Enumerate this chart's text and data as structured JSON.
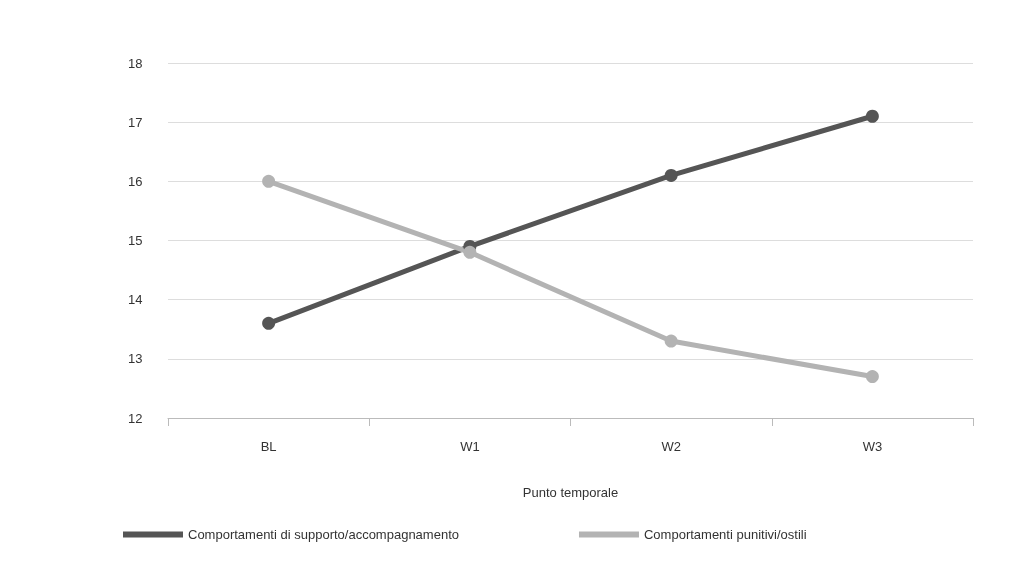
{
  "chart_data": {
    "type": "line",
    "xlabel": "Punto temporale",
    "categories": [
      "BL",
      "W1",
      "W2",
      "W3"
    ],
    "series": [
      {
        "name": "Comportamenti di supporto/accompagnamento",
        "color": "#555555",
        "values": [
          13.6,
          14.9,
          16.1,
          17.1
        ]
      },
      {
        "name": "Comportamenti punitivi/ostili",
        "color": "#b3b3b3",
        "values": [
          16.0,
          14.8,
          13.3,
          12.7
        ]
      }
    ],
    "ylim": [
      12,
      18
    ],
    "yticks": [
      12,
      13,
      14,
      15,
      16,
      17,
      18
    ],
    "grid": "y",
    "legend": "bottom",
    "marker": "circle",
    "line_style": "solid"
  }
}
